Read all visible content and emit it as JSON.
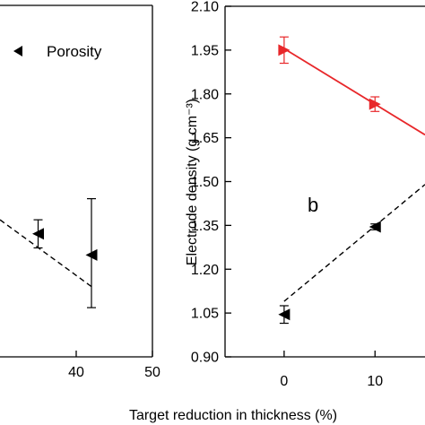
{
  "chart_data": [
    {
      "type": "scatter",
      "panel": "left",
      "title": "",
      "xlabel": "Target reduction in thickness (%)",
      "ylabel": "",
      "xlim": [
        30,
        50
      ],
      "x_ticks": [
        40,
        50
      ],
      "x_tick_labels": [
        "40",
        "50"
      ],
      "grid": false,
      "legend": {
        "position": "top-left",
        "entries": [
          {
            "label": "Porosity",
            "marker": "triangle-left",
            "color": "#000000"
          }
        ]
      },
      "series": [
        {
          "name": "Porosity",
          "color": "#000000",
          "marker": "triangle-left",
          "points": [
            {
              "x": 35,
              "y_rel": 0.35,
              "err_low_rel": 0.31,
              "err_high_rel": 0.39
            },
            {
              "x": 42,
              "y_rel": 0.29,
              "err_low_rel": 0.14,
              "err_high_rel": 0.45
            }
          ],
          "fit": {
            "style": "dashed",
            "x": [
              30,
              42
            ],
            "y_rel": [
              0.39,
              0.2
            ]
          }
        }
      ]
    },
    {
      "type": "scatter",
      "panel": "right",
      "title": "",
      "xlabel": "Target reduction in thickness (%)",
      "ylabel": "Electrode density (g cm⁻³)",
      "ylim": [
        0.9,
        2.1
      ],
      "xlim": [
        -6.5,
        15.5
      ],
      "y_ticks": [
        0.9,
        1.05,
        1.2,
        1.35,
        1.5,
        1.65,
        1.8,
        1.95,
        2.1
      ],
      "y_tick_labels": [
        "0.90",
        "1.05",
        "1.20",
        "1.35",
        "1.50",
        "1.65",
        "1.80",
        "1.95",
        "2.10"
      ],
      "x_ticks": [
        0,
        10
      ],
      "x_tick_labels": [
        "0",
        "10"
      ],
      "grid": false,
      "annotation": "b",
      "series": [
        {
          "name": "",
          "color": "#e8272a",
          "marker": "triangle-right",
          "points": [
            {
              "x": 0,
              "y": 1.95,
              "err_low": 1.905,
              "err_high": 1.995
            },
            {
              "x": 10,
              "y": 1.765,
              "err_low": 1.74,
              "err_high": 1.79
            }
          ],
          "fit": {
            "style": "solid",
            "x": [
              0,
              15.5
            ],
            "y": [
              1.955,
              1.66
            ]
          }
        },
        {
          "name": "",
          "color": "#000000",
          "marker": "triangle-left",
          "points": [
            {
              "x": 0,
              "y": 1.045,
              "err_low": 1.015,
              "err_high": 1.075
            },
            {
              "x": 10,
              "y": 1.345,
              "err_low": 1.335,
              "err_high": 1.355
            }
          ],
          "fit": {
            "style": "dashed",
            "x": [
              0,
              15.5
            ],
            "y": [
              1.09,
              1.49
            ]
          }
        }
      ]
    }
  ]
}
